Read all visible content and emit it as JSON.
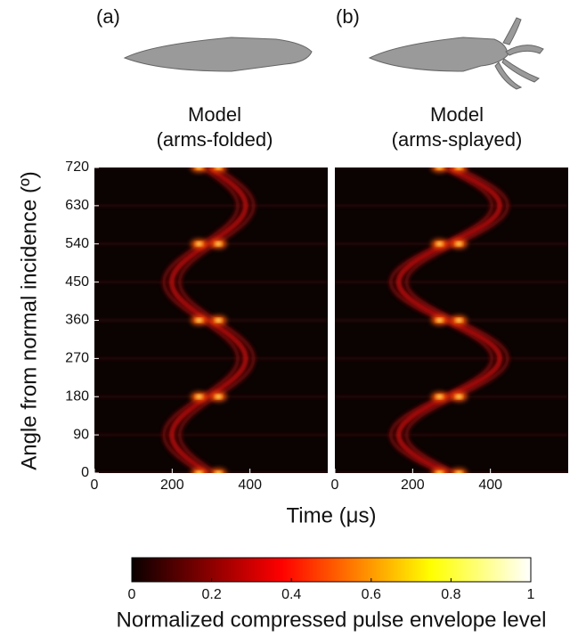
{
  "chart_data": [
    {
      "type": "heatmap",
      "panel_label": "(a)",
      "title": [
        "Model",
        "(arms-folded)"
      ],
      "xlim": [
        0,
        600
      ],
      "xticks": [
        0,
        200,
        400
      ],
      "ylim": [
        0,
        720
      ],
      "yticks": [
        0,
        90,
        180,
        270,
        360,
        450,
        540,
        630,
        720
      ]
    },
    {
      "type": "heatmap",
      "panel_label": "(b)",
      "title": [
        "Model",
        "(arms-splayed)"
      ],
      "xlim": [
        0,
        600
      ],
      "xticks": [
        0,
        200,
        400
      ],
      "ylim": [
        0,
        720
      ]
    }
  ],
  "x_label": "Time (μs)",
  "y_label": "Angle from normal incidence (º)",
  "colorbar": {
    "label": "Normalized compressed pulse envelope level",
    "colormap": "hot",
    "lim": [
      0,
      1
    ],
    "ticks": [
      0,
      0.2,
      0.4,
      0.6,
      0.8,
      1
    ]
  }
}
